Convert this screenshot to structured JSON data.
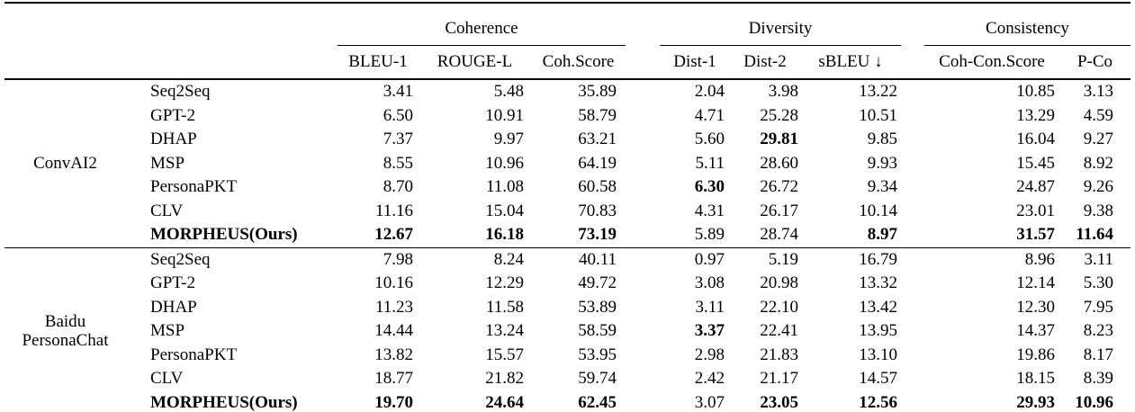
{
  "table": {
    "column_groups": [
      {
        "label": "Coherence",
        "columns": [
          "BLEU-1",
          "ROUGE-L",
          "Coh.Score"
        ]
      },
      {
        "label": "Diversity",
        "columns": [
          "Dist-1",
          "Dist-2",
          "sBLEU ↓"
        ]
      },
      {
        "label": "Consistency",
        "columns": [
          "Coh-Con.Score",
          "P-Co"
        ]
      }
    ],
    "blocks": [
      {
        "dataset": "ConvAI2",
        "dataset_lines": [
          "ConvAI2"
        ],
        "rows": [
          {
            "method": "Seq2Seq",
            "method_bold": false,
            "values": [
              "3.41",
              "5.48",
              "35.89",
              "2.04",
              "3.98",
              "13.22",
              "10.85",
              "3.13"
            ],
            "bold": [
              false,
              false,
              false,
              false,
              false,
              false,
              false,
              false
            ]
          },
          {
            "method": "GPT-2",
            "method_bold": false,
            "values": [
              "6.50",
              "10.91",
              "58.79",
              "4.71",
              "25.28",
              "10.51",
              "13.29",
              "4.59"
            ],
            "bold": [
              false,
              false,
              false,
              false,
              false,
              false,
              false,
              false
            ]
          },
          {
            "method": "DHAP",
            "method_bold": false,
            "values": [
              "7.37",
              "9.97",
              "63.21",
              "5.60",
              "29.81",
              "9.85",
              "16.04",
              "9.27"
            ],
            "bold": [
              false,
              false,
              false,
              false,
              true,
              false,
              false,
              false
            ]
          },
          {
            "method": "MSP",
            "method_bold": false,
            "values": [
              "8.55",
              "10.96",
              "64.19",
              "5.11",
              "28.60",
              "9.93",
              "15.45",
              "8.92"
            ],
            "bold": [
              false,
              false,
              false,
              false,
              false,
              false,
              false,
              false
            ]
          },
          {
            "method": "PersonaPKT",
            "method_bold": false,
            "values": [
              "8.70",
              "11.08",
              "60.58",
              "6.30",
              "26.72",
              "9.34",
              "24.87",
              "9.26"
            ],
            "bold": [
              false,
              false,
              false,
              true,
              false,
              false,
              false,
              false
            ]
          },
          {
            "method": "CLV",
            "method_bold": false,
            "values": [
              "11.16",
              "15.04",
              "70.83",
              "4.31",
              "26.17",
              "10.14",
              "23.01",
              "9.38"
            ],
            "bold": [
              false,
              false,
              false,
              false,
              false,
              false,
              false,
              false
            ]
          },
          {
            "method": "MORPHEUS(Ours)",
            "method_bold": true,
            "values": [
              "12.67",
              "16.18",
              "73.19",
              "5.89",
              "28.74",
              "8.97",
              "31.57",
              "11.64"
            ],
            "bold": [
              true,
              true,
              true,
              false,
              false,
              true,
              true,
              true
            ]
          }
        ]
      },
      {
        "dataset": "Baidu PersonaChat",
        "dataset_lines": [
          "Baidu",
          "PersonaChat"
        ],
        "rows": [
          {
            "method": "Seq2Seq",
            "method_bold": false,
            "values": [
              "7.98",
              "8.24",
              "40.11",
              "0.97",
              "5.19",
              "16.79",
              "8.96",
              "3.11"
            ],
            "bold": [
              false,
              false,
              false,
              false,
              false,
              false,
              false,
              false
            ]
          },
          {
            "method": "GPT-2",
            "method_bold": false,
            "values": [
              "10.16",
              "12.29",
              "49.72",
              "3.08",
              "20.98",
              "13.32",
              "12.14",
              "5.30"
            ],
            "bold": [
              false,
              false,
              false,
              false,
              false,
              false,
              false,
              false
            ]
          },
          {
            "method": "DHAP",
            "method_bold": false,
            "values": [
              "11.23",
              "11.58",
              "53.89",
              "3.11",
              "22.10",
              "13.42",
              "12.30",
              "7.95"
            ],
            "bold": [
              false,
              false,
              false,
              false,
              false,
              false,
              false,
              false
            ]
          },
          {
            "method": "MSP",
            "method_bold": false,
            "values": [
              "14.44",
              "13.24",
              "58.59",
              "3.37",
              "22.41",
              "13.95",
              "14.37",
              "8.23"
            ],
            "bold": [
              false,
              false,
              false,
              true,
              false,
              false,
              false,
              false
            ]
          },
          {
            "method": "PersonaPKT",
            "method_bold": false,
            "values": [
              "13.82",
              "15.57",
              "53.95",
              "2.98",
              "21.83",
              "13.10",
              "19.86",
              "8.17"
            ],
            "bold": [
              false,
              false,
              false,
              false,
              false,
              false,
              false,
              false
            ]
          },
          {
            "method": "CLV",
            "method_bold": false,
            "values": [
              "18.77",
              "21.82",
              "59.74",
              "2.42",
              "21.17",
              "14.57",
              "18.15",
              "8.39"
            ],
            "bold": [
              false,
              false,
              false,
              false,
              false,
              false,
              false,
              false
            ]
          },
          {
            "method": "MORPHEUS(Ours)",
            "method_bold": true,
            "values": [
              "19.70",
              "24.64",
              "62.45",
              "3.07",
              "23.05",
              "12.56",
              "29.93",
              "10.96"
            ],
            "bold": [
              true,
              true,
              true,
              false,
              true,
              true,
              true,
              true
            ]
          }
        ]
      }
    ]
  }
}
